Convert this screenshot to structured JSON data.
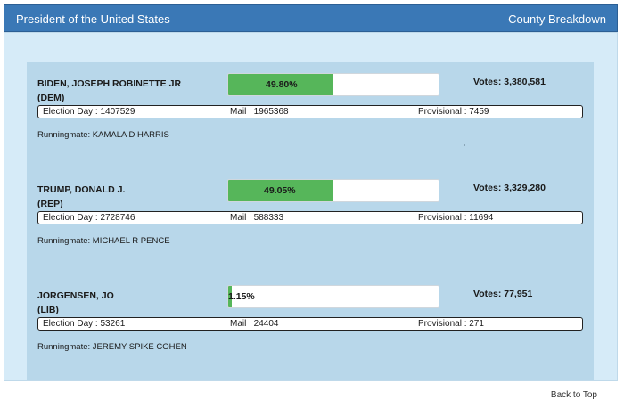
{
  "header": {
    "title": "President of the United States",
    "county_link": "County Breakdown"
  },
  "colors": {
    "header": "#3a78b6",
    "panel": "#d6ebf8",
    "inner_panel": "#b8d7ea",
    "bar_fill": "#56b65a"
  },
  "candidates": [
    {
      "name": "BIDEN, JOSEPH ROBINETTE JR",
      "party": "(DEM)",
      "percent_label": "49.80%",
      "percent": 49.8,
      "votes": "Votes: 3,380,581",
      "election_day": "Election Day : 1407529",
      "mail": "Mail : 1965368",
      "provisional": "Provisional : 7459",
      "runningmate": "Runningmate: KAMALA D HARRIS"
    },
    {
      "name": "TRUMP, DONALD J.",
      "party": "(REP)",
      "percent_label": "49.05%",
      "percent": 49.05,
      "votes": "Votes: 3,329,280",
      "election_day": "Election Day : 2728746",
      "mail": "Mail : 588333",
      "provisional": "Provisional : 11694",
      "runningmate": "Runningmate: MICHAEL R PENCE"
    },
    {
      "name": "JORGENSEN, JO",
      "party": "(LIB)",
      "percent_label": "1.15%",
      "percent": 1.15,
      "votes": "Votes: 77,951",
      "election_day": "Election Day : 53261",
      "mail": "Mail : 24404",
      "provisional": "Provisional : 271",
      "runningmate": "Runningmate: JEREMY SPIKE COHEN"
    }
  ],
  "footer": {
    "back_to_top": "Back to Top"
  }
}
